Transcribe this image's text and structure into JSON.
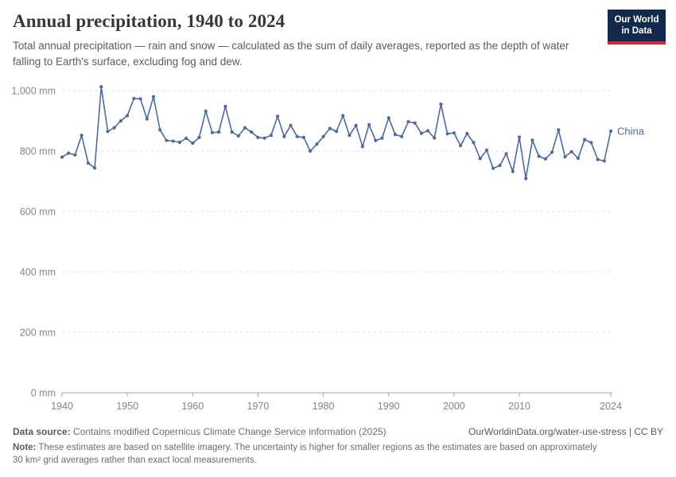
{
  "header": {
    "title": "Annual precipitation, 1940 to 2024",
    "subtitle": "Total annual precipitation — rain and snow — calculated as the sum of daily averages, reported as the depth of water falling to Earth's surface, excluding fog and dew."
  },
  "logo": {
    "line1": "Our World",
    "line2": "in Data",
    "bg_color": "#12294b",
    "stripe_color": "#d0293c"
  },
  "chart_data": {
    "type": "line",
    "title": "Annual precipitation, 1940 to 2024",
    "unit": "mm",
    "ylim": [
      0,
      1000
    ],
    "yticks": [
      0,
      200,
      400,
      600,
      800,
      1000
    ],
    "ytick_labels": [
      "0 mm",
      "200 mm",
      "400 mm",
      "600 mm",
      "800 mm",
      "1,000 mm"
    ],
    "xticks": [
      1940,
      1950,
      1960,
      1970,
      1980,
      1990,
      2000,
      2010,
      2024
    ],
    "grid": "horizontal-dashed",
    "legend": "entity-label-at-line-end",
    "marker": "dot",
    "x": [
      1940,
      1941,
      1942,
      1943,
      1944,
      1945,
      1946,
      1947,
      1948,
      1949,
      1950,
      1951,
      1952,
      1953,
      1954,
      1955,
      1956,
      1957,
      1958,
      1959,
      1960,
      1961,
      1962,
      1963,
      1964,
      1965,
      1966,
      1967,
      1968,
      1969,
      1970,
      1971,
      1972,
      1973,
      1974,
      1975,
      1976,
      1977,
      1978,
      1979,
      1980,
      1981,
      1982,
      1983,
      1984,
      1985,
      1986,
      1987,
      1988,
      1989,
      1990,
      1991,
      1992,
      1993,
      1994,
      1995,
      1996,
      1997,
      1998,
      1999,
      2000,
      2001,
      2002,
      2003,
      2004,
      2005,
      2006,
      2007,
      2008,
      2009,
      2010,
      2011,
      2012,
      2013,
      2014,
      2015,
      2016,
      2017,
      2018,
      2019,
      2020,
      2021,
      2022,
      2023,
      2024
    ],
    "series": [
      {
        "name": "China",
        "color": "#4C6A9C",
        "values": [
          780,
          793,
          787,
          852,
          760,
          744,
          1013,
          865,
          877,
          900,
          917,
          974,
          973,
          906,
          980,
          870,
          835,
          833,
          829,
          842,
          826,
          845,
          932,
          861,
          863,
          948,
          863,
          850,
          877,
          863,
          845,
          843,
          852,
          915,
          848,
          885,
          848,
          845,
          800,
          823,
          848,
          875,
          865,
          917,
          852,
          885,
          815,
          887,
          835,
          843,
          910,
          855,
          848,
          897,
          893,
          859,
          867,
          843,
          955,
          857,
          860,
          818,
          858,
          828,
          775,
          803,
          743,
          752,
          791,
          732,
          846,
          709,
          836,
          783,
          774,
          796,
          870,
          781,
          798,
          776,
          838,
          828,
          772,
          767,
          866
        ]
      }
    ],
    "axis_color": "#a3a3a3",
    "gridline_color": "#dedede",
    "tick_label_color": "#858585"
  },
  "footer": {
    "datasource_label": "Data source:",
    "datasource_text": "Contains modified Copernicus Climate Change Service information (2025)",
    "attribution": "OurWorldinData.org/water-use-stress | CC BY",
    "note_label": "Note:",
    "note_text": "These estimates are based on satellite imagery. The uncertainty is higher for smaller regions as the estimates are based on approximately 30 km² grid averages rather than exact local measurements."
  }
}
